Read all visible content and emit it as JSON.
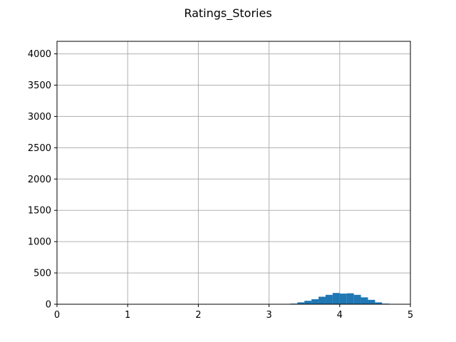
{
  "chart_data": {
    "type": "bar",
    "title": "Ratings_Stories",
    "xlabel": "",
    "ylabel": "",
    "xlim": [
      0,
      5
    ],
    "ylim": [
      0,
      4200
    ],
    "grid": true,
    "x_ticks": [
      0,
      1,
      2,
      3,
      4,
      5
    ],
    "y_ticks": [
      0,
      500,
      1000,
      1500,
      2000,
      2500,
      3000,
      3500,
      4000
    ],
    "bar_color": "#1f77b4",
    "bin_width": 0.1,
    "bins": [
      {
        "x0": 3.0,
        "x1": 3.1,
        "count": 0
      },
      {
        "x0": 3.1,
        "x1": 3.2,
        "count": 0
      },
      {
        "x0": 3.2,
        "x1": 3.3,
        "count": 2
      },
      {
        "x0": 3.3,
        "x1": 3.4,
        "count": 10
      },
      {
        "x0": 3.4,
        "x1": 3.5,
        "count": 30
      },
      {
        "x0": 3.5,
        "x1": 3.6,
        "count": 55
      },
      {
        "x0": 3.6,
        "x1": 3.7,
        "count": 80
      },
      {
        "x0": 3.7,
        "x1": 3.8,
        "count": 120
      },
      {
        "x0": 3.8,
        "x1": 3.9,
        "count": 150
      },
      {
        "x0": 3.9,
        "x1": 4.0,
        "count": 180
      },
      {
        "x0": 4.0,
        "x1": 4.1,
        "count": 170
      },
      {
        "x0": 4.1,
        "x1": 4.2,
        "count": 175
      },
      {
        "x0": 4.2,
        "x1": 4.3,
        "count": 150
      },
      {
        "x0": 4.3,
        "x1": 4.4,
        "count": 110
      },
      {
        "x0": 4.4,
        "x1": 4.5,
        "count": 70
      },
      {
        "x0": 4.5,
        "x1": 4.6,
        "count": 30
      },
      {
        "x0": 4.6,
        "x1": 4.7,
        "count": 10
      },
      {
        "x0": 4.7,
        "x1": 4.8,
        "count": 2
      }
    ]
  }
}
